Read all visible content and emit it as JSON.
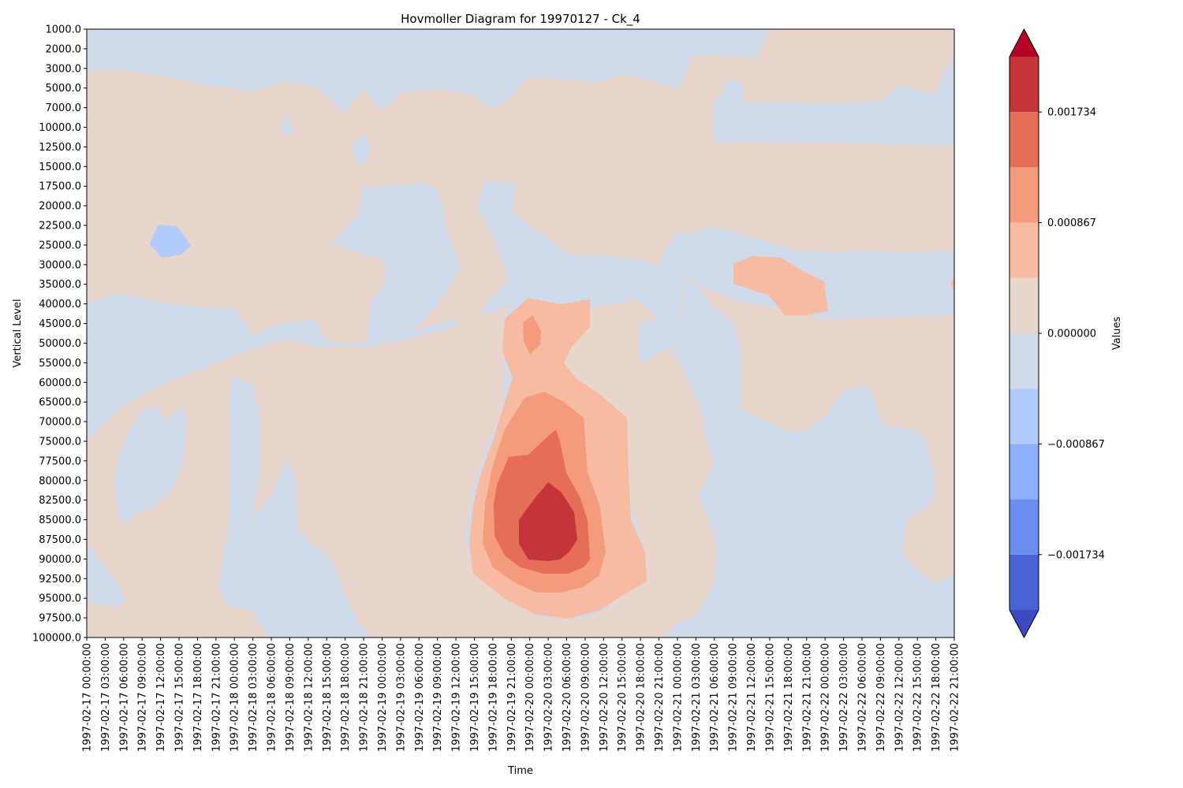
{
  "chart_data": {
    "type": "heatmap",
    "subtype": "filled-contour (Hovmoller)",
    "title": "Hovmoller Diagram for 19970127 - Ck_4",
    "xlabel": "Time",
    "ylabel": "Vertical Level",
    "colorbar_label": "Values",
    "colormap": "coolwarm",
    "y_axis_inverted": true,
    "y_ticks": [
      "1000.0",
      "2000.0",
      "3000.0",
      "5000.0",
      "7000.0",
      "10000.0",
      "12500.0",
      "15000.0",
      "17500.0",
      "20000.0",
      "22500.0",
      "25000.0",
      "30000.0",
      "35000.0",
      "40000.0",
      "45000.0",
      "50000.0",
      "55000.0",
      "60000.0",
      "65000.0",
      "70000.0",
      "75000.0",
      "77500.0",
      "80000.0",
      "82500.0",
      "85000.0",
      "87500.0",
      "90000.0",
      "92500.0",
      "95000.0",
      "97500.0",
      "100000.0"
    ],
    "x_ticks": [
      "1997-02-17 00:00:00",
      "1997-02-17 03:00:00",
      "1997-02-17 06:00:00",
      "1997-02-17 09:00:00",
      "1997-02-17 12:00:00",
      "1997-02-17 15:00:00",
      "1997-02-17 18:00:00",
      "1997-02-17 21:00:00",
      "1997-02-18 00:00:00",
      "1997-02-18 03:00:00",
      "1997-02-18 06:00:00",
      "1997-02-18 09:00:00",
      "1997-02-18 12:00:00",
      "1997-02-18 15:00:00",
      "1997-02-18 18:00:00",
      "1997-02-18 21:00:00",
      "1997-02-19 00:00:00",
      "1997-02-19 03:00:00",
      "1997-02-19 06:00:00",
      "1997-02-19 09:00:00",
      "1997-02-19 12:00:00",
      "1997-02-19 15:00:00",
      "1997-02-19 18:00:00",
      "1997-02-19 21:00:00",
      "1997-02-20 00:00:00",
      "1997-02-20 03:00:00",
      "1997-02-20 06:00:00",
      "1997-02-20 09:00:00",
      "1997-02-20 12:00:00",
      "1997-02-20 15:00:00",
      "1997-02-20 18:00:00",
      "1997-02-20 21:00:00",
      "1997-02-21 00:00:00",
      "1997-02-21 03:00:00",
      "1997-02-21 06:00:00",
      "1997-02-21 09:00:00",
      "1997-02-21 12:00:00",
      "1997-02-21 15:00:00",
      "1997-02-21 18:00:00",
      "1997-02-21 21:00:00",
      "1997-02-22 00:00:00",
      "1997-02-22 03:00:00",
      "1997-02-22 06:00:00",
      "1997-02-22 09:00:00",
      "1997-02-22 12:00:00",
      "1997-02-22 15:00:00",
      "1997-02-22 18:00:00",
      "1997-02-22 21:00:00"
    ],
    "colorbar_ticks": [
      "0.001734",
      "0.000867",
      "0.000000",
      "−0.000867",
      "−0.001734"
    ],
    "colorbar_levels": [
      {
        "level": 5,
        "range": [
          0.001734,
          0.0021675
        ],
        "color": "#c33538"
      },
      {
        "level": 4,
        "range": [
          0.0013005,
          0.001734
        ],
        "color": "#e46e56"
      },
      {
        "level": 3,
        "range": [
          0.000867,
          0.0013005
        ],
        "color": "#f39b7a"
      },
      {
        "level": 2,
        "range": [
          0.0004335,
          0.000867
        ],
        "color": "#f6bba1"
      },
      {
        "level": 1,
        "range": [
          0.0,
          0.0004335
        ],
        "color": "#e8d6cc"
      },
      {
        "level": -1,
        "range": [
          -0.0004335,
          0.0
        ],
        "color": "#cfdaea"
      },
      {
        "level": -2,
        "range": [
          -0.000867,
          -0.0004335
        ],
        "color": "#b1cbfc"
      },
      {
        "level": -3,
        "range": [
          -0.0013005,
          -0.000867
        ],
        "color": "#8db0fe"
      },
      {
        "level": -4,
        "range": [
          -0.001734,
          -0.0013005
        ],
        "color": "#6b8df0"
      },
      {
        "level": -5,
        "range": [
          -0.0021675,
          -0.001734
        ],
        "color": "#4a63d3"
      }
    ],
    "extend_colors": {
      "max": "#b40426",
      "min": "#3b4cc0"
    },
    "features": [
      {
        "name": "positive maximum",
        "center_time": "1997-02-20 03:00:00",
        "center_level": "87500.0",
        "value_range": [
          0.001734,
          0.0021675
        ]
      },
      {
        "name": "secondary maximum",
        "center_time": "1997-02-20 00:00:00",
        "center_level": "50000.0",
        "value_range": [
          0.000867,
          0.0013005
        ]
      },
      {
        "name": "weak negative minimum",
        "center_time": "1997-02-17 12:00:00",
        "center_level": "25000.0",
        "value_range": [
          -0.000867,
          -0.0004335
        ]
      }
    ]
  }
}
